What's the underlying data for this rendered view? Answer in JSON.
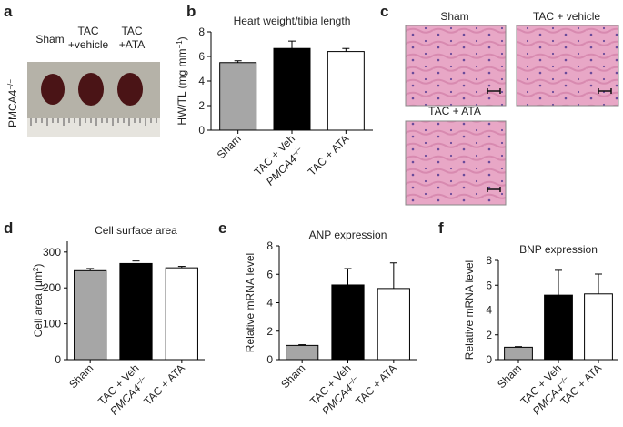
{
  "panels": {
    "a": {
      "letter": "a",
      "labels": [
        "Sham",
        "TAC",
        "+vehicle",
        "TAC",
        "+ATA"
      ],
      "genotype": "PMCA4",
      "genotype_sup": "−/−"
    },
    "c": {
      "letter": "c",
      "labels": [
        "Sham",
        "TAC + vehicle",
        "TAC + ATA"
      ]
    }
  },
  "chart_data": [
    {
      "type": "bar",
      "panel": "b",
      "title": "Heart weight/tibia length",
      "ylabel_parts": [
        "HW/TL (mg mm",
        "−1",
        ")"
      ],
      "categories": [
        "Sham",
        "TAC + Veh",
        "TAC + ATA"
      ],
      "group_label": "PMCA4",
      "group_label_sup": "−/−",
      "values": [
        5.5,
        6.65,
        6.4
      ],
      "errors": [
        0.15,
        0.6,
        0.25
      ],
      "colors": [
        "#a6a6a6",
        "#000000",
        "#ffffff"
      ],
      "ylim": [
        0,
        8
      ],
      "yticks": [
        0,
        2,
        4,
        6,
        8
      ]
    },
    {
      "type": "bar",
      "panel": "d",
      "title": "Cell surface area",
      "ylabel_parts": [
        "Cell area (μm",
        "2",
        ")"
      ],
      "categories": [
        "Sham",
        "TAC + Veh",
        "TAC + ATA"
      ],
      "group_label": "PMCA4",
      "group_label_sup": "−/−",
      "values": [
        248,
        268,
        256
      ],
      "errors": [
        6,
        7,
        4
      ],
      "colors": [
        "#a6a6a6",
        "#000000",
        "#ffffff"
      ],
      "ylim": [
        0,
        330
      ],
      "yticks": [
        0,
        100,
        200,
        300
      ]
    },
    {
      "type": "bar",
      "panel": "e",
      "title": "ANP expression",
      "ylabel_parts": [
        "Relative mRNA level"
      ],
      "categories": [
        "Sham",
        "TAC + Veh",
        "TAC + ATA"
      ],
      "group_label": "PMCA4",
      "group_label_sup": "−/−",
      "values": [
        1.0,
        5.25,
        5.0
      ],
      "errors": [
        0.05,
        1.15,
        1.8
      ],
      "colors": [
        "#a6a6a6",
        "#000000",
        "#ffffff"
      ],
      "ylim": [
        0,
        8
      ],
      "yticks": [
        0,
        2,
        4,
        6,
        8
      ]
    },
    {
      "type": "bar",
      "panel": "f",
      "title": "BNP expression",
      "ylabel_parts": [
        "Relative mRNA level"
      ],
      "categories": [
        "Sham",
        "TAC + Veh",
        "TAC + ATA"
      ],
      "group_label": "PMCA4",
      "group_label_sup": "−/−",
      "values": [
        1.0,
        5.2,
        5.3
      ],
      "errors": [
        0.05,
        2.0,
        1.6
      ],
      "colors": [
        "#a6a6a6",
        "#000000",
        "#ffffff"
      ],
      "ylim": [
        0,
        8
      ],
      "yticks": [
        0,
        2,
        4,
        6,
        8
      ]
    }
  ]
}
